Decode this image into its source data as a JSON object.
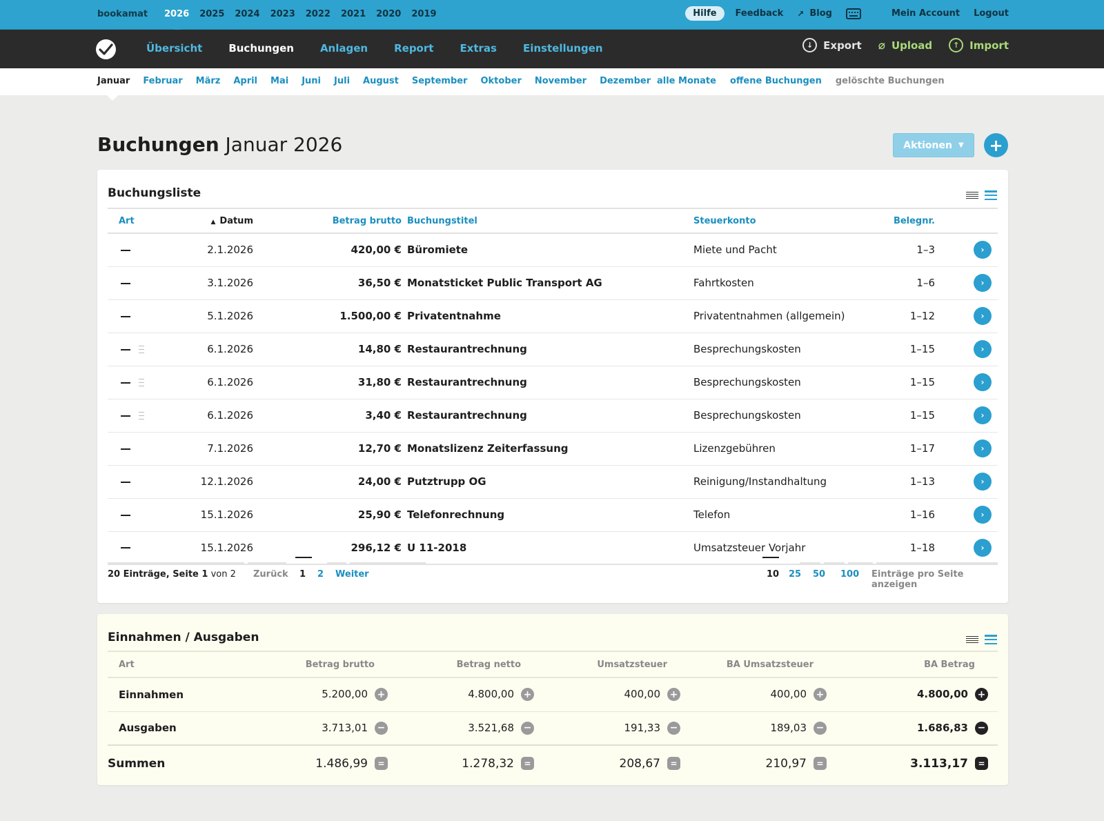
{
  "topbar": {
    "brand": "bookamat",
    "years": [
      "2026",
      "2025",
      "2024",
      "2023",
      "2022",
      "2021",
      "2020",
      "2019"
    ],
    "active_year": "2026",
    "hilfe": "Hilfe",
    "feedback": "Feedback",
    "blog": "Blog",
    "account": "Mein Account",
    "logout": "Logout"
  },
  "nav": {
    "items": [
      "Übersicht",
      "Buchungen",
      "Anlagen",
      "Report",
      "Extras",
      "Einstellungen"
    ],
    "active": "Buchungen",
    "export": "Export",
    "upload": "Upload",
    "import": "Import"
  },
  "months": {
    "items": [
      "Januar",
      "Februar",
      "März",
      "April",
      "Mai",
      "Juni",
      "Juli",
      "August",
      "September",
      "Oktober",
      "November",
      "Dezember"
    ],
    "active": "Januar",
    "all": "alle Monate",
    "open": "offene Buchungen",
    "deleted": "gelöschte Buchungen"
  },
  "page": {
    "title_bold": "Buchungen",
    "title_rest": " Januar 2026",
    "actions": "Aktionen"
  },
  "list": {
    "title": "Buchungsliste",
    "headers": {
      "art": "Art",
      "datum": "Datum",
      "betrag": "Betrag brutto",
      "titel": "Buchungstitel",
      "konto": "Steuerkonto",
      "beleg": "Belegnr."
    },
    "rows": [
      {
        "split": false,
        "datum": "2.1.2026",
        "betrag": "420,00 €",
        "titel": "Büromiete",
        "konto": "Miete und Pacht",
        "beleg": "1–3"
      },
      {
        "split": false,
        "datum": "3.1.2026",
        "betrag": "36,50 €",
        "titel": "Monatsticket Public Transport AG",
        "konto": "Fahrtkosten",
        "beleg": "1–6"
      },
      {
        "split": false,
        "datum": "5.1.2026",
        "betrag": "1.500,00 €",
        "titel": "Privatentnahme",
        "konto": "Privatentnahmen (allgemein)",
        "beleg": "1–12"
      },
      {
        "split": true,
        "datum": "6.1.2026",
        "betrag": "14,80 €",
        "titel": "Restaurantrechnung",
        "konto": "Besprechungskosten",
        "beleg": "1–15"
      },
      {
        "split": true,
        "datum": "6.1.2026",
        "betrag": "31,80 €",
        "titel": "Restaurantrechnung",
        "konto": "Besprechungskosten",
        "beleg": "1–15"
      },
      {
        "split": true,
        "datum": "6.1.2026",
        "betrag": "3,40 €",
        "titel": "Restaurantrechnung",
        "konto": "Besprechungskosten",
        "beleg": "1–15"
      },
      {
        "split": false,
        "datum": "7.1.2026",
        "betrag": "12,70 €",
        "titel": "Monatslizenz Zeiterfassung",
        "konto": "Lizenzgebühren",
        "beleg": "1–17"
      },
      {
        "split": false,
        "datum": "12.1.2026",
        "betrag": "24,00 €",
        "titel": "Putztrupp OG",
        "konto": "Reinigung/Instandhaltung",
        "beleg": "1–13"
      },
      {
        "split": false,
        "datum": "15.1.2026",
        "betrag": "25,90 €",
        "titel": "Telefonrechnung",
        "konto": "Telefon",
        "beleg": "1–16"
      },
      {
        "split": false,
        "datum": "15.1.2026",
        "betrag": "296,12 €",
        "titel": "U 11-2018",
        "konto": "Umsatzsteuer Vorjahr",
        "beleg": "1–18"
      }
    ],
    "pager": {
      "entries": "20 Einträge, Seite ",
      "page_num": "1",
      "of": " von 2",
      "back": "Zurück",
      "pages": [
        "1",
        "2"
      ],
      "next": "Weiter",
      "sizes": [
        "10",
        "25",
        "50",
        "100"
      ],
      "sizes_label": "Einträge pro Seite anzeigen"
    }
  },
  "summary": {
    "title": "Einnahmen / Ausgaben",
    "headers": [
      "Art",
      "Betrag brutto",
      "Betrag netto",
      "Umsatzsteuer",
      "BA Umsatzsteuer",
      "BA Betrag"
    ],
    "rows": [
      {
        "label": "Einnahmen",
        "values": [
          "5.200,00",
          "4.800,00",
          "400,00",
          "400,00",
          "4.800,00"
        ],
        "op": "+"
      },
      {
        "label": "Ausgaben",
        "values": [
          "3.713,01",
          "3.521,68",
          "191,33",
          "189,03",
          "1.686,83"
        ],
        "op": "−"
      }
    ],
    "sum": {
      "label": "Summen",
      "values": [
        "1.486,99",
        "1.278,32",
        "208,67",
        "210,97",
        "3.113,17"
      ],
      "op": "="
    }
  },
  "colors": {
    "topbar": "#2ea3cf",
    "darknav": "#2b2b2b",
    "link": "#1b8fc0",
    "accent": "#2b9fcf",
    "green": "#a9d97a"
  }
}
